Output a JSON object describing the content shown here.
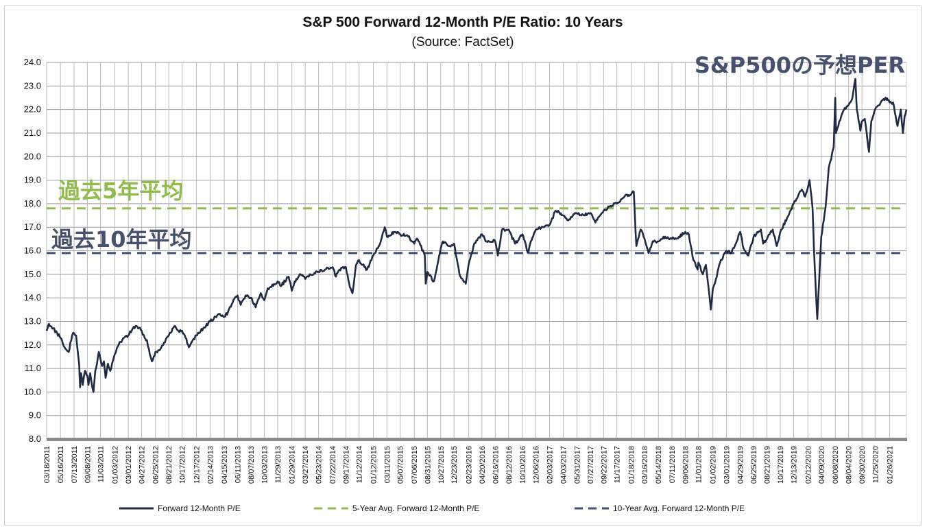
{
  "chart_data": {
    "type": "line",
    "title": "S&P 500 Forward 12-Month P/E Ratio: 10 Years",
    "subtitle": "(Source: FactSet)",
    "xlabel": "",
    "ylabel": "",
    "ylim": [
      8.0,
      24.0
    ],
    "yticks": [
      "8.0",
      "9.0",
      "10.0",
      "11.0",
      "12.0",
      "13.0",
      "14.0",
      "15.0",
      "16.0",
      "17.0",
      "18.0",
      "19.0",
      "20.0",
      "21.0",
      "22.0",
      "23.0",
      "24.0"
    ],
    "xticks": [
      "03/18/2011",
      "05/16/2011",
      "07/13/2011",
      "09/08/2011",
      "11/03/2011",
      "01/03/2012",
      "03/01/2012",
      "04/27/2012",
      "06/25/2012",
      "08/21/2012",
      "10/17/2012",
      "12/17/2012",
      "02/14/2013",
      "04/15/2013",
      "06/11/2013",
      "08/07/2013",
      "10/03/2013",
      "11/29/2013",
      "01/29/2014",
      "03/27/2014",
      "05/23/2014",
      "07/22/2014",
      "09/17/2014",
      "11/12/2014",
      "01/12/2015",
      "03/11/2015",
      "05/07/2015",
      "07/06/2015",
      "08/31/2015",
      "10/27/2015",
      "12/23/2015",
      "02/23/2016",
      "04/20/2016",
      "06/16/2016",
      "08/12/2016",
      "10/10/2016",
      "12/06/2016",
      "02/03/2017",
      "04/03/2017",
      "05/31/2017",
      "07/27/2017",
      "09/22/2017",
      "11/17/2017",
      "01/18/2018",
      "03/16/2018",
      "05/14/2018",
      "07/11/2018",
      "09/06/2018",
      "11/01/2018",
      "01/02/2019",
      "03/01/2019",
      "04/29/2019",
      "06/25/2019",
      "08/21/2019",
      "10/17/2019",
      "12/13/2019",
      "02/12/2020",
      "04/09/2020",
      "06/08/2020",
      "08/04/2020",
      "09/30/2020",
      "11/25/2020",
      "01/26/2021"
    ],
    "grid": true,
    "legend_position": "bottom",
    "series": [
      {
        "name": "Forward 12-Month P/E",
        "color": "#1f2a44",
        "points": [
          [
            "2011-03-18",
            12.6
          ],
          [
            "2011-03-28",
            12.9
          ],
          [
            "2011-04-15",
            12.7
          ],
          [
            "2011-05-02",
            12.5
          ],
          [
            "2011-05-16",
            12.3
          ],
          [
            "2011-05-25",
            12.1
          ],
          [
            "2011-06-10",
            11.8
          ],
          [
            "2011-06-20",
            11.7
          ],
          [
            "2011-07-05",
            12.4
          ],
          [
            "2011-07-13",
            12.5
          ],
          [
            "2011-07-22",
            12.4
          ],
          [
            "2011-08-04",
            11.2
          ],
          [
            "2011-08-08",
            10.2
          ],
          [
            "2011-08-12",
            10.8
          ],
          [
            "2011-08-19",
            10.3
          ],
          [
            "2011-08-29",
            10.9
          ],
          [
            "2011-09-08",
            10.7
          ],
          [
            "2011-09-13",
            10.3
          ],
          [
            "2011-09-20",
            10.8
          ],
          [
            "2011-09-29",
            10.2
          ],
          [
            "2011-10-04",
            10.0
          ],
          [
            "2011-10-12",
            10.9
          ],
          [
            "2011-10-19",
            11.2
          ],
          [
            "2011-10-27",
            11.7
          ],
          [
            "2011-11-03",
            11.4
          ],
          [
            "2011-11-10",
            11.1
          ],
          [
            "2011-11-18",
            11.3
          ],
          [
            "2011-11-25",
            10.6
          ],
          [
            "2011-12-05",
            11.2
          ],
          [
            "2011-12-15",
            10.9
          ],
          [
            "2012-01-03",
            11.6
          ],
          [
            "2012-01-20",
            12.0
          ],
          [
            "2012-02-10",
            12.3
          ],
          [
            "2012-03-01",
            12.4
          ],
          [
            "2012-03-20",
            12.7
          ],
          [
            "2012-04-05",
            12.8
          ],
          [
            "2012-04-27",
            12.6
          ],
          [
            "2012-05-10",
            12.3
          ],
          [
            "2012-05-20",
            12.2
          ],
          [
            "2012-06-01",
            11.6
          ],
          [
            "2012-06-10",
            11.3
          ],
          [
            "2012-06-25",
            11.7
          ],
          [
            "2012-07-15",
            11.8
          ],
          [
            "2012-08-01",
            12.1
          ],
          [
            "2012-08-21",
            12.4
          ],
          [
            "2012-09-14",
            12.8
          ],
          [
            "2012-10-01",
            12.6
          ],
          [
            "2012-10-17",
            12.6
          ],
          [
            "2012-11-01",
            12.3
          ],
          [
            "2012-11-15",
            11.9
          ],
          [
            "2012-12-01",
            12.2
          ],
          [
            "2012-12-17",
            12.4
          ],
          [
            "2013-01-15",
            12.7
          ],
          [
            "2013-02-14",
            13.0
          ],
          [
            "2013-03-01",
            13.1
          ],
          [
            "2013-03-20",
            13.3
          ],
          [
            "2013-04-15",
            13.2
          ],
          [
            "2013-05-01",
            13.4
          ],
          [
            "2013-05-21",
            13.8
          ],
          [
            "2013-06-11",
            14.1
          ],
          [
            "2013-06-24",
            13.7
          ],
          [
            "2013-07-15",
            14.1
          ],
          [
            "2013-08-07",
            14.0
          ],
          [
            "2013-08-27",
            13.6
          ],
          [
            "2013-09-18",
            14.2
          ],
          [
            "2013-10-03",
            13.9
          ],
          [
            "2013-10-18",
            14.4
          ],
          [
            "2013-11-29",
            14.7
          ],
          [
            "2013-12-13",
            14.5
          ],
          [
            "2014-01-15",
            14.9
          ],
          [
            "2014-01-29",
            14.3
          ],
          [
            "2014-02-10",
            14.7
          ],
          [
            "2014-03-07",
            15.0
          ],
          [
            "2014-03-27",
            14.8
          ],
          [
            "2014-04-15",
            15.0
          ],
          [
            "2014-05-23",
            15.1
          ],
          [
            "2014-06-20",
            15.2
          ],
          [
            "2014-07-22",
            15.3
          ],
          [
            "2014-08-05",
            14.9
          ],
          [
            "2014-08-20",
            15.2
          ],
          [
            "2014-09-17",
            15.3
          ],
          [
            "2014-10-01",
            14.6
          ],
          [
            "2014-10-15",
            14.2
          ],
          [
            "2014-10-30",
            15.4
          ],
          [
            "2014-11-12",
            15.6
          ],
          [
            "2014-12-16",
            15.2
          ],
          [
            "2015-01-12",
            15.8
          ],
          [
            "2015-02-10",
            16.3
          ],
          [
            "2015-03-02",
            17.0
          ],
          [
            "2015-03-11",
            16.6
          ],
          [
            "2015-04-10",
            16.8
          ],
          [
            "2015-05-07",
            16.7
          ],
          [
            "2015-06-10",
            16.6
          ],
          [
            "2015-07-06",
            16.3
          ],
          [
            "2015-07-20",
            16.5
          ],
          [
            "2015-08-20",
            15.8
          ],
          [
            "2015-08-24",
            14.6
          ],
          [
            "2015-08-31",
            15.1
          ],
          [
            "2015-09-28",
            14.7
          ],
          [
            "2015-10-27",
            16.1
          ],
          [
            "2015-11-05",
            16.4
          ],
          [
            "2015-12-01",
            16.2
          ],
          [
            "2015-12-23",
            16.3
          ],
          [
            "2016-01-15",
            15.0
          ],
          [
            "2016-02-11",
            14.6
          ],
          [
            "2016-02-23",
            15.4
          ],
          [
            "2016-03-15",
            16.2
          ],
          [
            "2016-04-20",
            16.7
          ],
          [
            "2016-05-10",
            16.4
          ],
          [
            "2016-06-16",
            16.4
          ],
          [
            "2016-06-27",
            15.8
          ],
          [
            "2016-07-15",
            16.9
          ],
          [
            "2016-08-12",
            16.9
          ],
          [
            "2016-09-09",
            16.3
          ],
          [
            "2016-10-10",
            16.7
          ],
          [
            "2016-11-04",
            15.9
          ],
          [
            "2016-11-15",
            16.4
          ],
          [
            "2016-12-06",
            16.9
          ],
          [
            "2017-01-10",
            17.0
          ],
          [
            "2017-02-03",
            17.1
          ],
          [
            "2017-03-01",
            17.7
          ],
          [
            "2017-04-03",
            17.5
          ],
          [
            "2017-04-20",
            17.3
          ],
          [
            "2017-05-31",
            17.6
          ],
          [
            "2017-06-30",
            17.5
          ],
          [
            "2017-07-27",
            17.6
          ],
          [
            "2017-08-18",
            17.2
          ],
          [
            "2017-09-22",
            17.7
          ],
          [
            "2017-10-20",
            17.9
          ],
          [
            "2017-11-17",
            18.0
          ],
          [
            "2017-12-20",
            18.3
          ],
          [
            "2018-01-18",
            18.4
          ],
          [
            "2018-01-29",
            18.5
          ],
          [
            "2018-02-05",
            16.9
          ],
          [
            "2018-02-09",
            16.2
          ],
          [
            "2018-02-27",
            16.9
          ],
          [
            "2018-03-16",
            16.5
          ],
          [
            "2018-04-02",
            15.9
          ],
          [
            "2018-04-20",
            16.4
          ],
          [
            "2018-05-14",
            16.4
          ],
          [
            "2018-06-12",
            16.6
          ],
          [
            "2018-07-11",
            16.5
          ],
          [
            "2018-08-10",
            16.6
          ],
          [
            "2018-09-06",
            16.8
          ],
          [
            "2018-09-21",
            16.7
          ],
          [
            "2018-10-11",
            15.6
          ],
          [
            "2018-10-29",
            15.2
          ],
          [
            "2018-11-01",
            15.5
          ],
          [
            "2018-11-20",
            15.0
          ],
          [
            "2018-12-03",
            15.4
          ],
          [
            "2018-12-24",
            13.5
          ],
          [
            "2019-01-02",
            14.4
          ],
          [
            "2019-01-15",
            14.8
          ],
          [
            "2019-02-05",
            15.6
          ],
          [
            "2019-03-01",
            16.0
          ],
          [
            "2019-03-22",
            15.9
          ],
          [
            "2019-04-29",
            16.8
          ],
          [
            "2019-05-13",
            16.1
          ],
          [
            "2019-06-03",
            15.8
          ],
          [
            "2019-06-25",
            16.6
          ],
          [
            "2019-07-26",
            16.9
          ],
          [
            "2019-08-05",
            16.3
          ],
          [
            "2019-08-21",
            16.5
          ],
          [
            "2019-09-15",
            16.9
          ],
          [
            "2019-10-02",
            16.2
          ],
          [
            "2019-10-17",
            16.8
          ],
          [
            "2019-11-15",
            17.4
          ],
          [
            "2019-12-13",
            18.0
          ],
          [
            "2020-01-17",
            18.6
          ],
          [
            "2020-01-31",
            18.3
          ],
          [
            "2020-02-19",
            19.0
          ],
          [
            "2020-03-03",
            17.8
          ],
          [
            "2020-03-09",
            16.0
          ],
          [
            "2020-03-16",
            14.5
          ],
          [
            "2020-03-23",
            13.1
          ],
          [
            "2020-04-09",
            16.6
          ],
          [
            "2020-04-27",
            17.8
          ],
          [
            "2020-05-11",
            19.5
          ],
          [
            "2020-06-01",
            20.4
          ],
          [
            "2020-06-08",
            22.5
          ],
          [
            "2020-06-11",
            21.0
          ],
          [
            "2020-06-25",
            21.5
          ],
          [
            "2020-07-15",
            22.0
          ],
          [
            "2020-08-04",
            22.2
          ],
          [
            "2020-08-20",
            22.5
          ],
          [
            "2020-09-02",
            23.3
          ],
          [
            "2020-09-08",
            22.0
          ],
          [
            "2020-09-23",
            21.1
          ],
          [
            "2020-09-30",
            21.5
          ],
          [
            "2020-10-12",
            21.6
          ],
          [
            "2020-10-30",
            20.2
          ],
          [
            "2020-11-09",
            21.5
          ],
          [
            "2020-11-25",
            22.0
          ],
          [
            "2020-12-15",
            22.2
          ],
          [
            "2021-01-08",
            22.5
          ],
          [
            "2021-01-26",
            22.3
          ],
          [
            "2021-02-10",
            22.3
          ],
          [
            "2021-03-01",
            21.3
          ],
          [
            "2021-03-15",
            22.0
          ],
          [
            "2021-03-24",
            21.0
          ],
          [
            "2021-03-31",
            21.7
          ],
          [
            "2021-04-08",
            22.0
          ]
        ]
      },
      {
        "name": "5-Year Avg. Forward 12-Month P/E",
        "color": "#8fbc4a",
        "value": 17.8
      },
      {
        "name": "10-Year Avg. Forward 12-Month P/E",
        "color": "#3d4f73",
        "value": 15.9
      }
    ],
    "annotations": [
      {
        "text": "S&P500の予想PER",
        "color": "#46516e"
      },
      {
        "text": "過去5年平均",
        "color": "#8fbc4a"
      },
      {
        "text": "過去10年平均",
        "color": "#46516e"
      }
    ]
  }
}
